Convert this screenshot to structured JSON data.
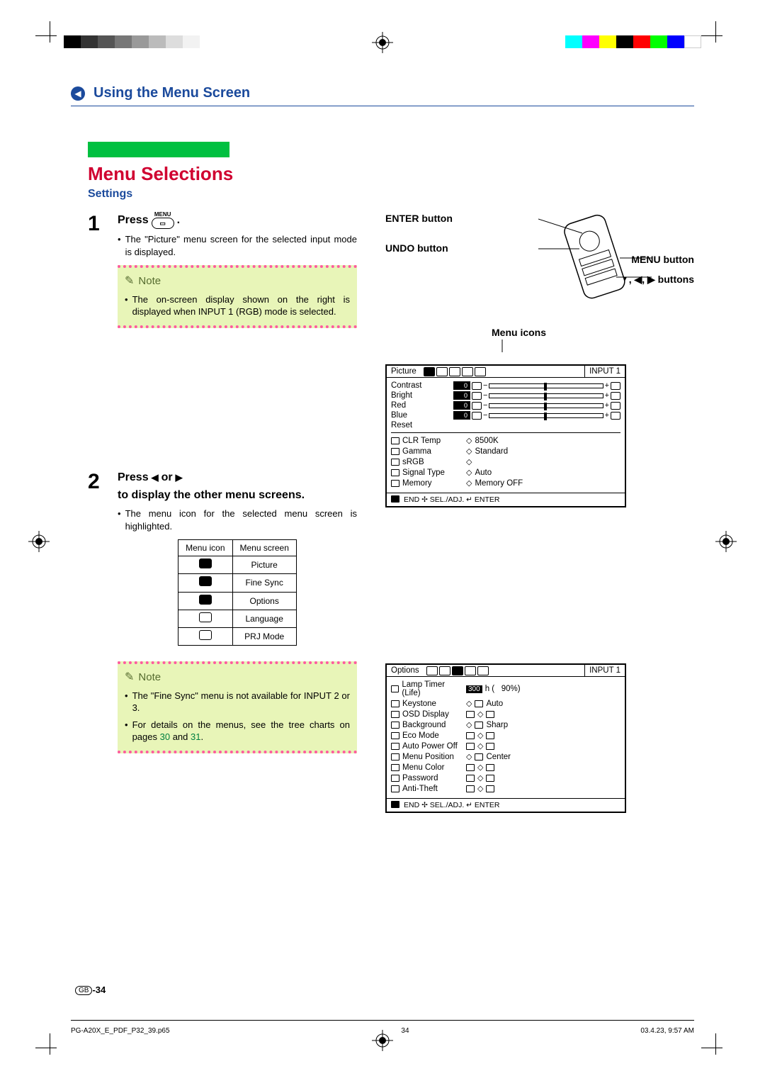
{
  "print": {
    "greys": [
      "#000000",
      "#333333",
      "#555555",
      "#777777",
      "#999999",
      "#bbbbbb",
      "#dddddd",
      "#f2f2f2"
    ],
    "colors": [
      "#00ffff",
      "#ff00ff",
      "#ffff00",
      "#000000",
      "#ff0000",
      "#00ff00",
      "#0000ff",
      "#ffffff"
    ]
  },
  "header": {
    "title": "Using the Menu Screen"
  },
  "section": {
    "title": "Menu Selections",
    "sub": "Settings"
  },
  "step1": {
    "num": "1",
    "press": "Press",
    "menu_tiny": "MENU",
    "btn_glyph": "▭",
    "desc": "The \"Picture\" menu screen for the selected input mode is displayed.",
    "note_title": "Note",
    "note_body": "The on-screen display shown on the right is displayed when INPUT 1 (RGB) mode is selected."
  },
  "step2": {
    "num": "2",
    "head_a": "Press",
    "head_b": "or",
    "head_c": "to display the other menu screens.",
    "desc": "The menu icon for the selected menu screen is highlighted.",
    "table": {
      "h1": "Menu icon",
      "h2": "Menu screen",
      "rows": [
        "Picture",
        "Fine Sync",
        "Options",
        "Language",
        "PRJ Mode"
      ]
    },
    "note_title": "Note",
    "note1": "The \"Fine Sync\" menu is not available for INPUT 2 or 3.",
    "note2a": "For details on the menus, see the tree charts on pages ",
    "note2b": "30",
    "note2c": " and ",
    "note2d": "31",
    "note2e": "."
  },
  "remote": {
    "enter": "ENTER button",
    "undo": "UNDO button",
    "menu": "MENU button",
    "arrows": "▲, ▼, ◀, ▶ buttons",
    "menuicons": "Menu icons"
  },
  "osd1": {
    "title": "Picture",
    "input": "INPUT 1",
    "sliders": [
      {
        "name": "Contrast",
        "val": "0"
      },
      {
        "name": "Bright",
        "val": "0"
      },
      {
        "name": "Red",
        "val": "0"
      },
      {
        "name": "Blue",
        "val": "0"
      }
    ],
    "reset": "Reset",
    "opts": [
      {
        "name": "CLR Temp",
        "val": "8500K"
      },
      {
        "name": "Gamma",
        "val": "Standard"
      },
      {
        "name": "sRGB",
        "val": ""
      },
      {
        "name": "Signal Type",
        "val": "Auto"
      },
      {
        "name": "Memory",
        "val": "Memory OFF"
      }
    ],
    "footer": "END ✢ SEL./ADJ. ↵ ENTER"
  },
  "osd2": {
    "title": "Options",
    "input": "INPUT 1",
    "rows": [
      {
        "name": "Lamp Timer (Life)",
        "val": "300 h (    90%)"
      },
      {
        "name": "Keystone",
        "val": "Auto"
      },
      {
        "name": "OSD Display",
        "val": ""
      },
      {
        "name": "Background",
        "val": "Sharp"
      },
      {
        "name": "Eco Mode",
        "val": ""
      },
      {
        "name": "Auto Power Off",
        "val": ""
      },
      {
        "name": "Menu Position",
        "val": "Center"
      },
      {
        "name": "Menu Color",
        "val": ""
      },
      {
        "name": "Password",
        "val": ""
      },
      {
        "name": "Anti-Theft",
        "val": ""
      }
    ],
    "footer": "END ✢ SEL./ADJ. ↵ ENTER"
  },
  "pagenum": {
    "gb": "GB",
    "num": "-34"
  },
  "footer": {
    "file": "PG-A20X_E_PDF_P32_39.p65",
    "page": "34",
    "date": "03.4.23, 9:57 AM"
  }
}
